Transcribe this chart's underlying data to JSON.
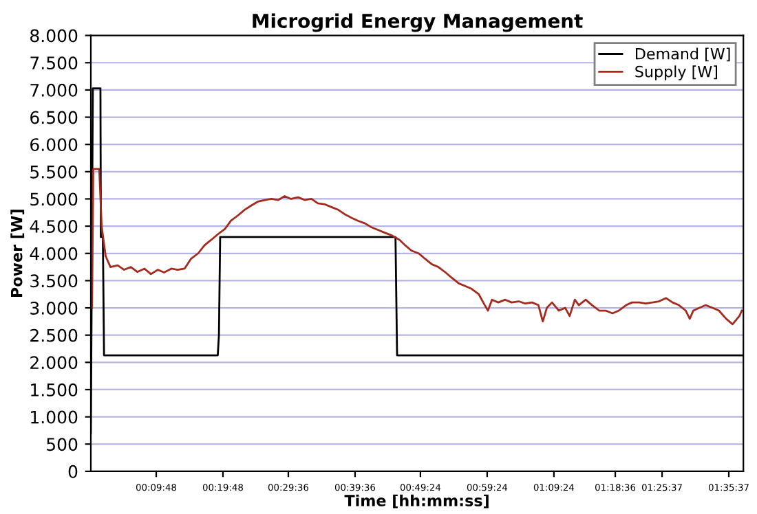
{
  "chart_data": {
    "type": "line",
    "title": "Microgrid Energy Management",
    "xlabel": "Time [hh:mm:ss]",
    "ylabel": "Power [W]",
    "xlim": [
      0,
      1.63
    ],
    "xticks": [
      {
        "value": 0.1633,
        "label": "00:09:48"
      },
      {
        "value": 0.33,
        "label": "00:19:48"
      },
      {
        "value": 0.4933,
        "label": "00:29:36"
      },
      {
        "value": 0.66,
        "label": "00:39:36"
      },
      {
        "value": 0.8233,
        "label": "00:49:24"
      },
      {
        "value": 0.99,
        "label": "00:59:24"
      },
      {
        "value": 1.1567,
        "label": "01:09:24"
      },
      {
        "value": 1.31,
        "label": "01:18:36"
      },
      {
        "value": 1.4269,
        "label": "01:25:37"
      },
      {
        "value": 1.5936,
        "label": "01:35:37"
      }
    ],
    "ylim": [
      0,
      8000
    ],
    "yticks": [
      0,
      500,
      {
        "value": 1000,
        "label": "1.000"
      },
      {
        "value": 1500,
        "label": "1.500"
      },
      {
        "value": 2000,
        "label": "2.000"
      },
      {
        "value": 2500,
        "label": "2.500"
      },
      {
        "value": 3000,
        "label": "3.000"
      },
      {
        "value": 3500,
        "label": "3.500"
      },
      {
        "value": 4000,
        "label": "4.000"
      },
      {
        "value": 4500,
        "label": "4.500"
      },
      {
        "value": 5000,
        "label": "5.000"
      },
      {
        "value": 5500,
        "label": "5.500"
      },
      {
        "value": 6000,
        "label": "6.000"
      },
      {
        "value": 6500,
        "label": "6.500"
      },
      {
        "value": 7000,
        "label": "7.000"
      },
      {
        "value": 7500,
        "label": "7.500"
      },
      {
        "value": 8000,
        "label": "8.000"
      }
    ],
    "grid": "y",
    "legend": "top right",
    "series": [
      {
        "name": "Demand [W]",
        "color": "#000000",
        "x": [
          0.0,
          0.005,
          0.024,
          0.025,
          0.03,
          0.033,
          0.317,
          0.32,
          0.323,
          0.761,
          0.765,
          1.626
        ],
        "values": [
          700,
          7030,
          7030,
          4300,
          4300,
          2130,
          2130,
          2500,
          4300,
          4300,
          2130,
          2130
        ]
      },
      {
        "name": "Supply [W]",
        "color": "#a52a1e",
        "x": [
          0.003,
          0.006,
          0.021,
          0.027,
          0.037,
          0.049,
          0.067,
          0.083,
          0.1,
          0.116,
          0.134,
          0.15,
          0.167,
          0.183,
          0.201,
          0.217,
          0.234,
          0.25,
          0.268,
          0.284,
          0.301,
          0.317,
          0.335,
          0.35,
          0.368,
          0.384,
          0.401,
          0.417,
          0.435,
          0.451,
          0.468,
          0.484,
          0.5,
          0.518,
          0.534,
          0.551,
          0.567,
          0.585,
          0.601,
          0.618,
          0.634,
          0.652,
          0.667,
          0.685,
          0.701,
          0.718,
          0.734,
          0.752,
          0.771,
          0.785,
          0.801,
          0.819,
          0.835,
          0.852,
          0.868,
          0.886,
          0.902,
          0.919,
          0.935,
          0.951,
          0.969,
          0.984,
          0.992,
          1.002,
          1.018,
          1.035,
          1.051,
          1.069,
          1.085,
          1.102,
          1.118,
          1.129,
          1.139,
          1.152,
          1.169,
          1.185,
          1.196,
          1.209,
          1.219,
          1.236,
          1.252,
          1.27,
          1.286,
          1.303,
          1.319,
          1.337,
          1.352,
          1.37,
          1.386,
          1.403,
          1.419,
          1.437,
          1.453,
          1.469,
          1.486,
          1.496,
          1.505,
          1.52,
          1.536,
          1.553,
          1.569,
          1.587,
          1.603,
          1.62,
          1.626
        ],
        "values": [
          3000,
          5550,
          5550,
          4500,
          3950,
          3750,
          3780,
          3700,
          3750,
          3660,
          3720,
          3620,
          3700,
          3650,
          3720,
          3700,
          3720,
          3900,
          4000,
          4150,
          4250,
          4350,
          4450,
          4600,
          4700,
          4800,
          4880,
          4950,
          4980,
          5000,
          4980,
          5050,
          5000,
          5030,
          4980,
          5000,
          4920,
          4900,
          4850,
          4800,
          4720,
          4650,
          4600,
          4550,
          4480,
          4430,
          4380,
          4330,
          4250,
          4150,
          4050,
          4000,
          3900,
          3800,
          3750,
          3650,
          3550,
          3450,
          3400,
          3350,
          3250,
          3050,
          2950,
          3150,
          3100,
          3150,
          3100,
          3120,
          3080,
          3100,
          3050,
          2750,
          3000,
          3100,
          2950,
          3000,
          2850,
          3150,
          3050,
          3150,
          3050,
          2950,
          2950,
          2900,
          2950,
          3050,
          3100,
          3100,
          3080,
          3100,
          3120,
          3180,
          3100,
          3050,
          2950,
          2800,
          2950,
          3000,
          3050,
          3000,
          2950,
          2800,
          2700,
          2850,
          2950
        ]
      }
    ]
  }
}
